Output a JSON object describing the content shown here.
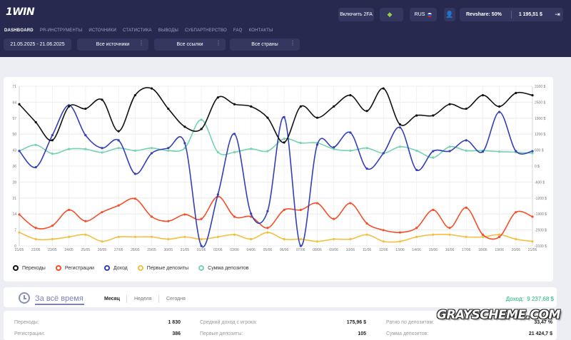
{
  "header": {
    "logo": "1WIN",
    "enable_2fa": "Включить 2FA",
    "language": "RUS",
    "revshare": "Revshare: 50%",
    "balance": "1 195,51  $"
  },
  "nav": [
    "DASHBOARD",
    "PR-ИНСТРУМЕНТЫ",
    "ИСТОЧНИКИ",
    "СТАТИСТИКА",
    "ВЫВОДЫ",
    "СУБПАРТНЕРСТВО",
    "FAQ",
    "КОНТАКТЫ"
  ],
  "filters": {
    "date_range": "21.05.2025  -  21.06.2025",
    "sources": "Все источники",
    "links": "Все ссылки",
    "countries": "Все страны"
  },
  "chart_data": {
    "type": "line",
    "x": [
      "21/05",
      "22/05",
      "23/05",
      "24/05",
      "25/05",
      "26/05",
      "27/05",
      "28/05",
      "29/05",
      "30/05",
      "31/05",
      "01/06",
      "02/06",
      "03/06",
      "04/06",
      "05/06",
      "06/06",
      "07/06",
      "08/06",
      "09/06",
      "10/06",
      "11/06",
      "12/06",
      "13/06",
      "14/06",
      "15/06",
      "16/06",
      "17/06",
      "18/06",
      "19/06",
      "20/06",
      "21/06"
    ],
    "left_axis": {
      "ticks": [
        "0",
        "7",
        "14",
        "21",
        "28",
        "36",
        "43",
        "50",
        "57",
        "64",
        "71"
      ],
      "ylim": [
        0,
        71
      ]
    },
    "right_axis": {
      "ticks": [
        "-3100 $",
        "-2500 $",
        "-1900 $",
        "-1200 $",
        "-600 $",
        "0 $",
        "600 $",
        "1200 $",
        "1900 $",
        "2500 $",
        "3100 $"
      ],
      "ylim": [
        -3100,
        3100
      ]
    },
    "series": [
      {
        "name": "Переходы",
        "color": "#111111",
        "axis": "left",
        "values": [
          63,
          55,
          47,
          62,
          61,
          65,
          51,
          67,
          70,
          61,
          53,
          52,
          66,
          63,
          62,
          57,
          46,
          62,
          57,
          62,
          67,
          60,
          70,
          54,
          58,
          58,
          63,
          61,
          67,
          62,
          68,
          67
        ]
      },
      {
        "name": "Регистрации",
        "color": "#f44f28",
        "axis": "left",
        "values": [
          14,
          8,
          9,
          16,
          11,
          15,
          18,
          21,
          13,
          11,
          14,
          12,
          22,
          13,
          13,
          8,
          16,
          16,
          19,
          12,
          19,
          10,
          7,
          6,
          8,
          16,
          8,
          17,
          5,
          4,
          15,
          13
        ]
      },
      {
        "name": "Доход",
        "color": "#3240b8",
        "axis": "right",
        "values": [
          590,
          -45,
          1200,
          2360,
          1200,
          700,
          1000,
          -300,
          500,
          700,
          890,
          -3100,
          -1100,
          1250,
          -1850,
          -1750,
          1900,
          -3100,
          830,
          730,
          1300,
          -100,
          500,
          1500,
          -150,
          580,
          580,
          1000,
          560,
          2100,
          580,
          580
        ]
      },
      {
        "name": "Первые депозиты",
        "color": "#f4c040",
        "axis": "left",
        "values": [
          6,
          3,
          3,
          4,
          5,
          2,
          4,
          4,
          4,
          3,
          4,
          3,
          4,
          5,
          3,
          6,
          3,
          3,
          2,
          3,
          3,
          5,
          2,
          2,
          4,
          5,
          5,
          4,
          4,
          5,
          3,
          2
        ]
      },
      {
        "name": "Сумма депозитов",
        "color": "#76d3b2",
        "axis": "right",
        "values": [
          580,
          820,
          480,
          660,
          660,
          530,
          700,
          600,
          700,
          600,
          700,
          1800,
          540,
          540,
          670,
          580,
          1060,
          900,
          900,
          660,
          600,
          700,
          500,
          750,
          600,
          330,
          750,
          600,
          600,
          560,
          540,
          500
        ]
      }
    ]
  },
  "period": {
    "title": "За всё время",
    "tabs": [
      "Месяц",
      "Неделя",
      "Сегодня"
    ],
    "income_label": "Доход:",
    "income_value": "9 237,68 $"
  },
  "stats": [
    {
      "label": "Переходы:",
      "value": "1 830"
    },
    {
      "label": "Регистрации:",
      "value": "386"
    },
    {
      "label": "Средний доход с игрока:",
      "value": "175,96 $"
    },
    {
      "label": "Первые депозиты:",
      "value": "105"
    },
    {
      "label": "Ратио по депозитам:",
      "value": "33,47 %"
    },
    {
      "label": "Сумма депозитов:",
      "value": "21 424,7 $"
    }
  ],
  "watermark": "GRAYSCHEME.COM"
}
